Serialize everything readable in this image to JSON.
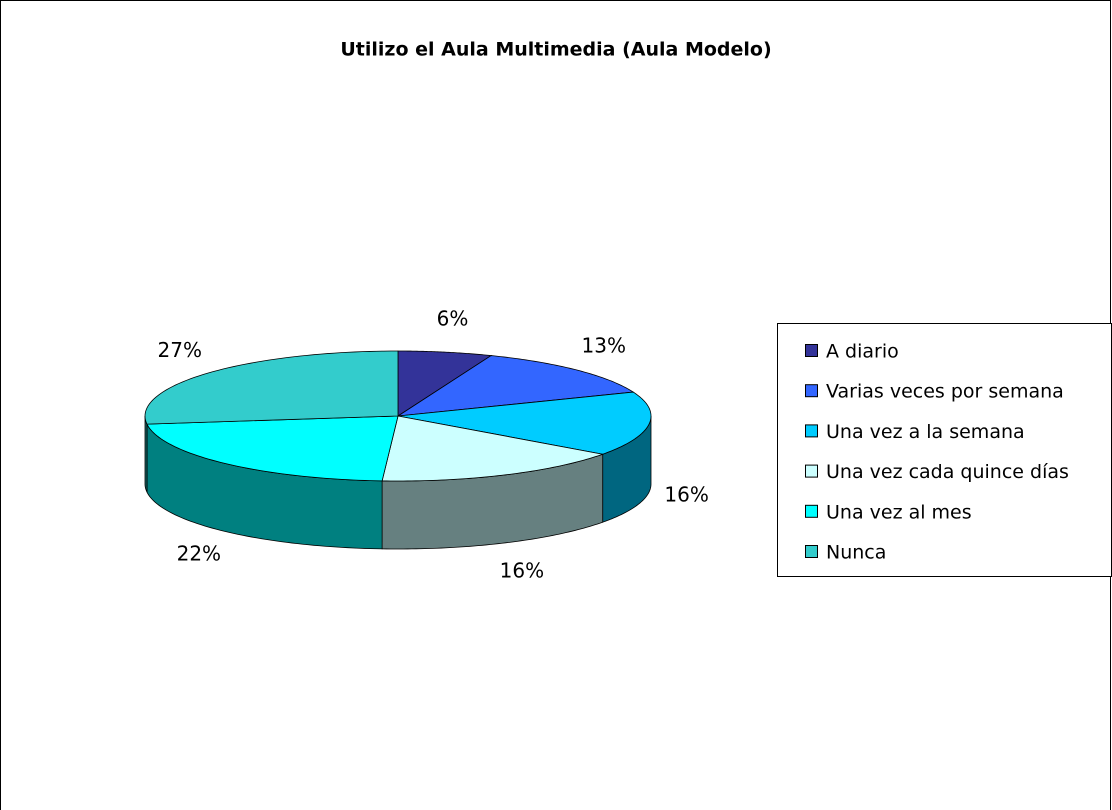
{
  "chart_data": {
    "type": "pie3d",
    "title": "Utilizo el Aula Multimedia (Aula Modelo)",
    "categories": [
      "A diario",
      "Varias veces por semana",
      "Una vez a la semana",
      "Una vez cada quince días",
      "Una vez al mes",
      "Nunca"
    ],
    "values": [
      6,
      13,
      16,
      16,
      22,
      27
    ],
    "value_labels": [
      "6%",
      "13%",
      "16%",
      "16%",
      "22%",
      "27%"
    ],
    "colors": [
      "#333399",
      "#3366ff",
      "#00ccff",
      "#ccffff",
      "#00ffff",
      "#33cccc"
    ],
    "legend": "right"
  }
}
